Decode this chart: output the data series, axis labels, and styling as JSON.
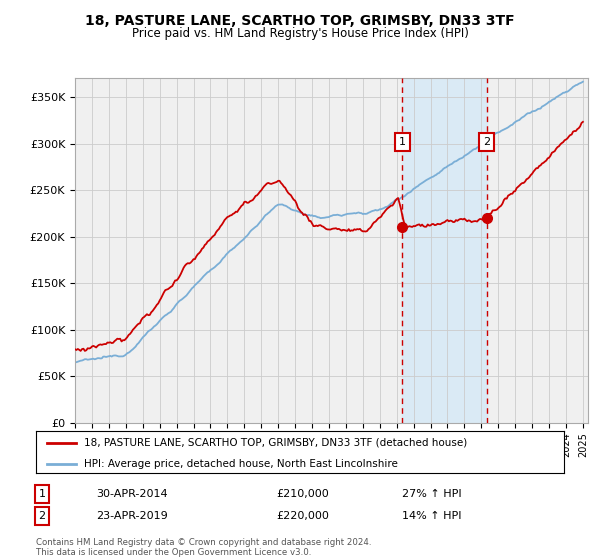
{
  "title": "18, PASTURE LANE, SCARTHO TOP, GRIMSBY, DN33 3TF",
  "subtitle": "Price paid vs. HM Land Registry's House Price Index (HPI)",
  "ylabel_ticks": [
    "£0",
    "£50K",
    "£100K",
    "£150K",
    "£200K",
    "£250K",
    "£300K",
    "£350K"
  ],
  "ytick_vals": [
    0,
    50000,
    100000,
    150000,
    200000,
    250000,
    300000,
    350000
  ],
  "ylim": [
    0,
    370000
  ],
  "sale1_price": 210000,
  "sale2_price": 220000,
  "sale1_date": "30-APR-2014",
  "sale2_date": "23-APR-2019",
  "sale1_hpi": "27% ↑ HPI",
  "sale2_hpi": "14% ↑ HPI",
  "sale1_year": 2014.33,
  "sale2_year": 2019.33,
  "legend_line1": "18, PASTURE LANE, SCARTHO TOP, GRIMSBY, DN33 3TF (detached house)",
  "legend_line2": "HPI: Average price, detached house, North East Lincolnshire",
  "footer": "Contains HM Land Registry data © Crown copyright and database right 2024.\nThis data is licensed under the Open Government Licence v3.0.",
  "line_color_red": "#cc0000",
  "line_color_blue": "#7aaed6",
  "shade_color": "#daeaf5",
  "grid_color": "#cccccc",
  "background_color": "#f0f0f0"
}
